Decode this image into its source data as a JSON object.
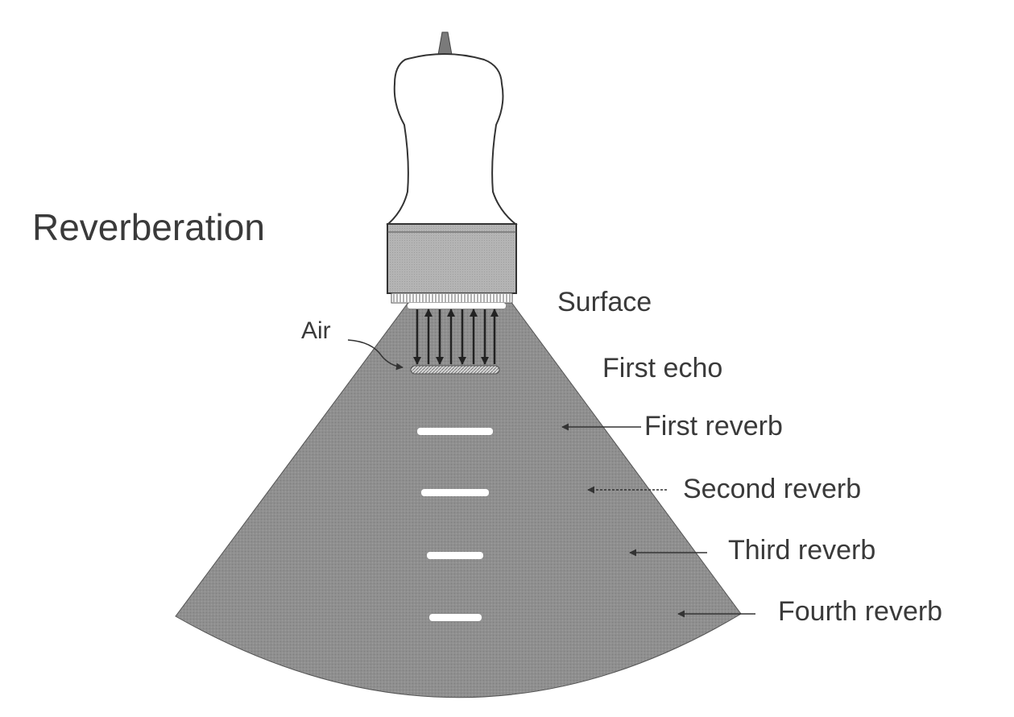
{
  "title": "Reverberation",
  "labels": {
    "air": "Air",
    "surface": "Surface",
    "first_echo": "First echo",
    "first_reverb": "First reverb",
    "second_reverb": "Second reverb",
    "third_reverb": "Third reverb",
    "fourth_reverb": "Fourth reverb"
  },
  "colors": {
    "beam_fill": "#8f8f8f",
    "probe_head": "#b4b4b4",
    "probe_body": "#ffffff",
    "echo_band": "#ffffff",
    "text": "#3a3a3a",
    "outline": "#333333"
  }
}
